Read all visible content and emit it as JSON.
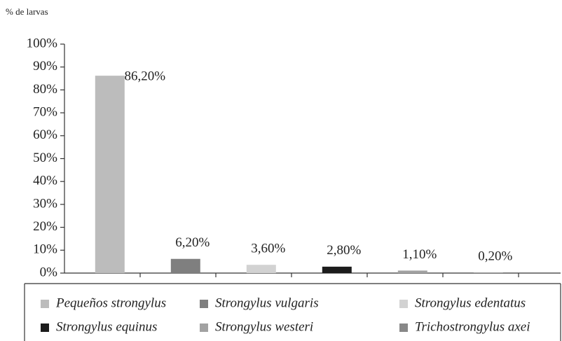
{
  "chart_data": {
    "type": "bar",
    "y_label": "% de larvas",
    "categories": [
      "Pequeños strongylus",
      "Strongylus vulgaris",
      "Strongylus edentatus",
      "Strongylus equinus",
      "Strongylus westeri",
      "Trichostrongylus axei"
    ],
    "values": [
      86.2,
      6.2,
      3.6,
      2.8,
      1.1,
      0.2
    ],
    "value_labels": [
      "86,20%",
      "6,20%",
      "3,60%",
      "2,80%",
      "1,10%",
      "0,20%"
    ],
    "colors": [
      "#bcbcbc",
      "#7f7f7f",
      "#d2d2d2",
      "#1c1c1c",
      "#a2a2a2",
      "#888888"
    ],
    "ylim": [
      0,
      100
    ],
    "yticks": [
      {
        "value": 0,
        "label": "0%"
      },
      {
        "value": 10,
        "label": "10%"
      },
      {
        "value": 20,
        "label": "20%"
      },
      {
        "value": 30,
        "label": "30%"
      },
      {
        "value": 40,
        "label": "40%"
      },
      {
        "value": 50,
        "label": "50%"
      },
      {
        "value": 60,
        "label": "60%"
      },
      {
        "value": 70,
        "label": "70%"
      },
      {
        "value": 80,
        "label": "80%"
      },
      {
        "value": 90,
        "label": "90%"
      },
      {
        "value": 100,
        "label": "100%"
      }
    ],
    "grid": false,
    "legend": "bottom"
  }
}
